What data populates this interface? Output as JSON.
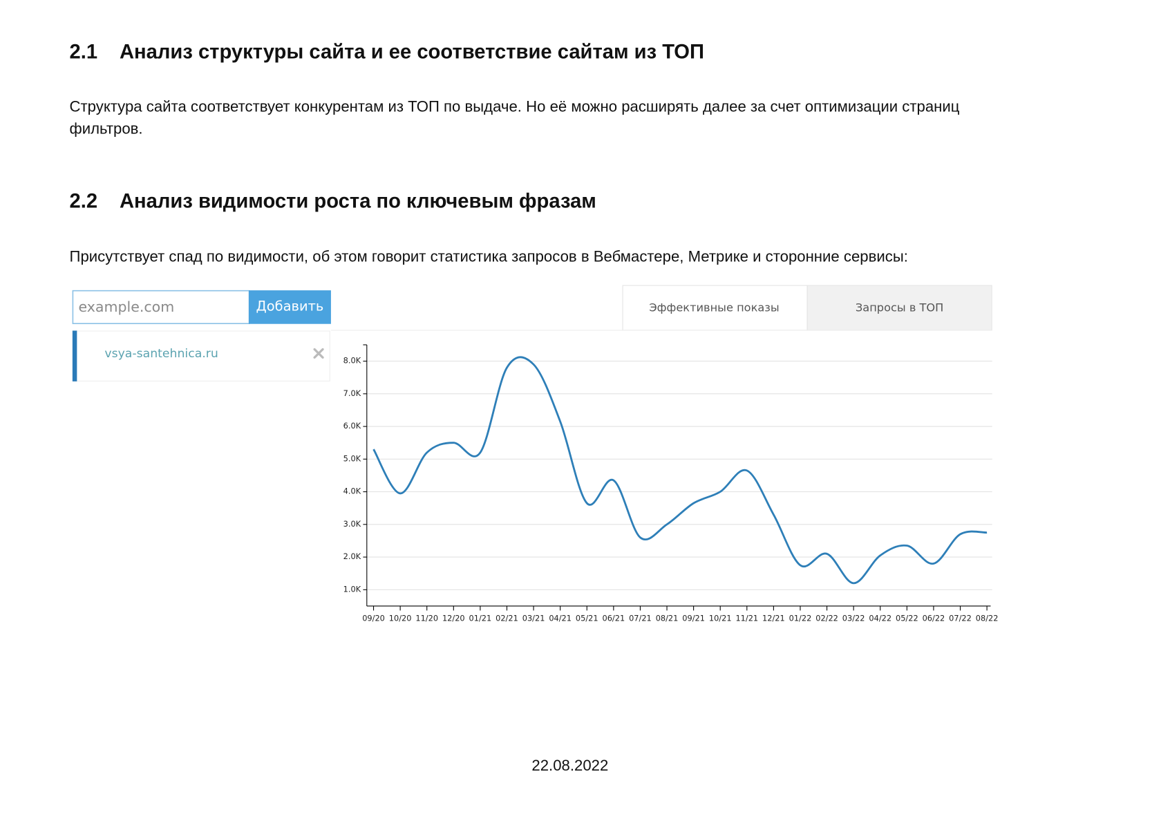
{
  "sections": [
    {
      "number": "2.1",
      "title": "Анализ структуры сайта и ее соответствие сайтам из ТОП",
      "paragraph_lines": [
        "Структура сайта соответствует конкурентам из ТОП по выдаче. Но её можно расширять далее за счет оптимизации страниц",
        "фильтров."
      ]
    },
    {
      "number": "2.2",
      "title": "Анализ видимости роста по ключевым фразам",
      "paragraph_lines": [
        "Присутствует спад по видимости, об этом говорит статистика запросов в Вебмастере, Метрике и сторонние сервисы:"
      ]
    }
  ],
  "widget": {
    "input_placeholder": "example.com",
    "button": "Добавить",
    "tabs": [
      "Эффективные показы",
      "Запросы в ТОП"
    ],
    "sites": [
      "vsya-santehnica.ru"
    ]
  },
  "chart_data": {
    "type": "line",
    "categories": [
      "09/20",
      "10/20",
      "11/20",
      "12/20",
      "01/21",
      "02/21",
      "03/21",
      "04/21",
      "05/21",
      "06/21",
      "07/21",
      "08/21",
      "09/21",
      "10/21",
      "11/21",
      "12/21",
      "01/22",
      "02/22",
      "03/22",
      "04/22",
      "05/22",
      "06/22",
      "07/22",
      "08/22"
    ],
    "values": [
      5300,
      3950,
      5200,
      5500,
      5200,
      7800,
      7900,
      6150,
      3650,
      4350,
      2600,
      3000,
      3650,
      4000,
      4650,
      3300,
      1750,
      2100,
      1200,
      2050,
      2350,
      1800,
      2700,
      2750
    ],
    "color": "#2e7fb8",
    "ylim": [
      500,
      8500
    ],
    "yticks": [
      {
        "value": 1000,
        "label": "1.0K"
      },
      {
        "value": 2000,
        "label": "2.0K"
      },
      {
        "value": 3000,
        "label": "3.0K"
      },
      {
        "value": 4000,
        "label": "4.0K"
      },
      {
        "value": 5000,
        "label": "5.0K"
      },
      {
        "value": 6000,
        "label": "6.0K"
      },
      {
        "value": 7000,
        "label": "7.0K"
      },
      {
        "value": 8000,
        "label": "8.0K"
      }
    ],
    "grid": true
  },
  "footer": "22.08.2022"
}
